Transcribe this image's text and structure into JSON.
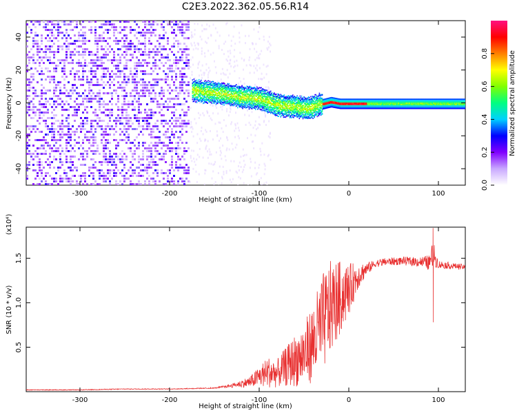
{
  "title": "C2E3.2022.362.05.56.R14",
  "chart_data": [
    {
      "type": "heatmap",
      "name": "spectrogram",
      "xlabel": "Height of straight line (km)",
      "ylabel": "Frequency (Hz)",
      "xlim": [
        -360,
        130
      ],
      "ylim": [
        -50,
        50
      ],
      "x_ticks": [
        -300,
        -200,
        -100,
        0,
        100
      ],
      "y_ticks": [
        -40,
        -20,
        0,
        20,
        40
      ],
      "colorbar": {
        "label": "Normalized spectral amplitude",
        "range": [
          0.0,
          1.0
        ],
        "ticks": [
          0.0,
          0.2,
          0.4,
          0.6,
          0.8
        ],
        "tick_labels": [
          "0.0",
          "0.2",
          "0.4",
          "0.6",
          "0.8"
        ],
        "colors": [
          "#ffffff",
          "#c9a8ff",
          "#8000ff",
          "#0000ff",
          "#00d0ff",
          "#00ff80",
          "#80ff00",
          "#ffff00",
          "#ff8000",
          "#ff0000",
          "#ff1080"
        ]
      },
      "signal_track": {
        "x": [
          -175,
          -160,
          -140,
          -120,
          -100,
          -80,
          -60,
          -45,
          -35,
          -20,
          -10,
          0,
          40,
          80,
          130
        ],
        "freq_hz": [
          8,
          7,
          6,
          4,
          3,
          -1,
          -2,
          -3,
          -1,
          1,
          0,
          0,
          0,
          0,
          0
        ]
      },
      "noise_region_x": [
        -360,
        -178
      ]
    },
    {
      "type": "line",
      "name": "snr",
      "xlabel": "Height of straight line (km)",
      "ylabel": "SNR (10 * v/v)",
      "y_scale_label": "(x10⁴)",
      "xlim": [
        -360,
        130
      ],
      "ylim": [
        0,
        1.85
      ],
      "x_ticks": [
        -300,
        -200,
        -100,
        0,
        100
      ],
      "y_ticks": [
        0.5,
        1.0,
        1.5
      ],
      "y_tick_labels": [
        "0.5",
        "1.0",
        "1.5"
      ],
      "series": [
        {
          "name": "SNR",
          "color": "#e83030",
          "x": [
            -360,
            -300,
            -250,
            -200,
            -150,
            -130,
            -110,
            -100,
            -90,
            -80,
            -70,
            -60,
            -50,
            -40,
            -30,
            -20,
            -10,
            0,
            10,
            20,
            30,
            40,
            60,
            80,
            90,
            94,
            100,
            130
          ],
          "y": [
            0.02,
            0.02,
            0.03,
            0.03,
            0.04,
            0.07,
            0.11,
            0.17,
            0.22,
            0.2,
            0.28,
            0.35,
            0.42,
            0.55,
            0.75,
            0.95,
            1.05,
            1.15,
            1.3,
            1.38,
            1.44,
            1.46,
            1.47,
            1.46,
            1.45,
            1.55,
            1.43,
            1.4
          ]
        }
      ],
      "noise_amplitude_fraction": [
        0.0,
        0.0,
        0.05,
        0.05,
        0.1,
        0.3,
        0.6,
        0.7,
        0.8,
        0.8,
        0.8,
        0.85,
        0.85,
        0.8,
        0.75,
        0.55,
        0.4,
        0.25,
        0.12,
        0.05,
        0.03,
        0.03,
        0.03,
        0.04,
        0.06,
        0.1,
        0.03,
        0.02
      ]
    }
  ]
}
